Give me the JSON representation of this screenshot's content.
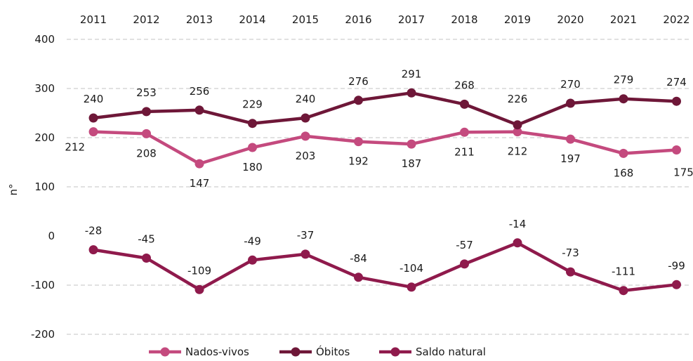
{
  "chart_data": {
    "type": "line",
    "ylabel": "n°",
    "ylim": [
      -200,
      400
    ],
    "yticks": [
      -200,
      -100,
      0,
      100,
      200,
      300,
      400
    ],
    "x_axis_position": "top",
    "grid": true,
    "legend_position": "bottom",
    "categories": [
      "2011",
      "2012",
      "2013",
      "2014",
      "2015",
      "2016",
      "2017",
      "2018",
      "2019",
      "2020",
      "2021",
      "2022"
    ],
    "series": [
      {
        "name": "Nados-vivos",
        "color": "#c44a7e",
        "values": [
          212,
          208,
          147,
          180,
          203,
          192,
          187,
          211,
          212,
          197,
          168,
          175
        ]
      },
      {
        "name": "Óbitos",
        "color": "#6e1738",
        "values": [
          240,
          253,
          256,
          229,
          240,
          276,
          291,
          268,
          226,
          270,
          279,
          274
        ]
      },
      {
        "name": "Saldo natural",
        "color": "#8f1a4c",
        "values": [
          -28,
          -45,
          -109,
          -49,
          -37,
          -84,
          -104,
          -57,
          -14,
          -73,
          -111,
          -99
        ]
      }
    ]
  }
}
